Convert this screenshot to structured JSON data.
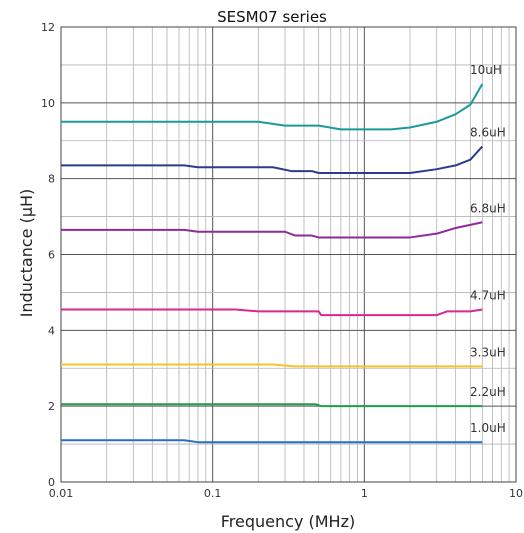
{
  "chart_data": {
    "type": "line",
    "title": "SESM07 series",
    "xlabel": "Frequency (MHz)",
    "ylabel": "Inductance (μH)",
    "x_scale": "log",
    "xlim": [
      0.01,
      10
    ],
    "ylim": [
      0,
      12
    ],
    "x_ticks": [
      "0.01",
      "0.1",
      "1",
      "10"
    ],
    "y_ticks": [
      "0",
      "2",
      "4",
      "6",
      "8",
      "10",
      "12"
    ],
    "grid": true,
    "series": [
      {
        "name": "10uH",
        "color": "#1a9a9a",
        "points": [
          [
            0.01,
            9.5
          ],
          [
            0.2,
            9.5
          ],
          [
            0.3,
            9.4
          ],
          [
            0.5,
            9.4
          ],
          [
            0.7,
            9.3
          ],
          [
            1.5,
            9.3
          ],
          [
            2.0,
            9.35
          ],
          [
            3.0,
            9.5
          ],
          [
            4.0,
            9.7
          ],
          [
            5.0,
            9.95
          ],
          [
            6.0,
            10.5
          ]
        ]
      },
      {
        "name": "8.6uH",
        "color": "#2e3a8c",
        "points": [
          [
            0.01,
            8.35
          ],
          [
            0.065,
            8.35
          ],
          [
            0.08,
            8.3
          ],
          [
            0.25,
            8.3
          ],
          [
            0.33,
            8.2
          ],
          [
            0.45,
            8.2
          ],
          [
            0.5,
            8.15
          ],
          [
            2.0,
            8.15
          ],
          [
            3.0,
            8.25
          ],
          [
            4.0,
            8.35
          ],
          [
            5.0,
            8.5
          ],
          [
            6.0,
            8.85
          ]
        ]
      },
      {
        "name": "6.8uH",
        "color": "#8e2a9a",
        "points": [
          [
            0.01,
            6.65
          ],
          [
            0.065,
            6.65
          ],
          [
            0.08,
            6.6
          ],
          [
            0.3,
            6.6
          ],
          [
            0.35,
            6.5
          ],
          [
            0.45,
            6.5
          ],
          [
            0.5,
            6.45
          ],
          [
            2.0,
            6.45
          ],
          [
            3.0,
            6.55
          ],
          [
            4.0,
            6.7
          ],
          [
            6.0,
            6.85
          ]
        ]
      },
      {
        "name": "4.7uH",
        "color": "#d8278e",
        "points": [
          [
            0.01,
            4.55
          ],
          [
            0.14,
            4.55
          ],
          [
            0.2,
            4.5
          ],
          [
            0.5,
            4.5
          ],
          [
            0.52,
            4.4
          ],
          [
            3.0,
            4.4
          ],
          [
            3.5,
            4.5
          ],
          [
            5.0,
            4.5
          ],
          [
            6.0,
            4.55
          ]
        ]
      },
      {
        "name": "3.3uH",
        "color": "#f4c42c",
        "points": [
          [
            0.01,
            3.1
          ],
          [
            0.25,
            3.1
          ],
          [
            0.35,
            3.05
          ],
          [
            6.0,
            3.05
          ]
        ]
      },
      {
        "name": "2.2uH",
        "color": "#1e9e4a",
        "points": [
          [
            0.01,
            2.05
          ],
          [
            0.48,
            2.05
          ],
          [
            0.52,
            2.0
          ],
          [
            6.0,
            2.0
          ]
        ]
      },
      {
        "name": "1.0uH",
        "color": "#2a6fc0",
        "points": [
          [
            0.01,
            1.1
          ],
          [
            0.065,
            1.1
          ],
          [
            0.08,
            1.05
          ],
          [
            6.0,
            1.05
          ]
        ]
      }
    ]
  }
}
